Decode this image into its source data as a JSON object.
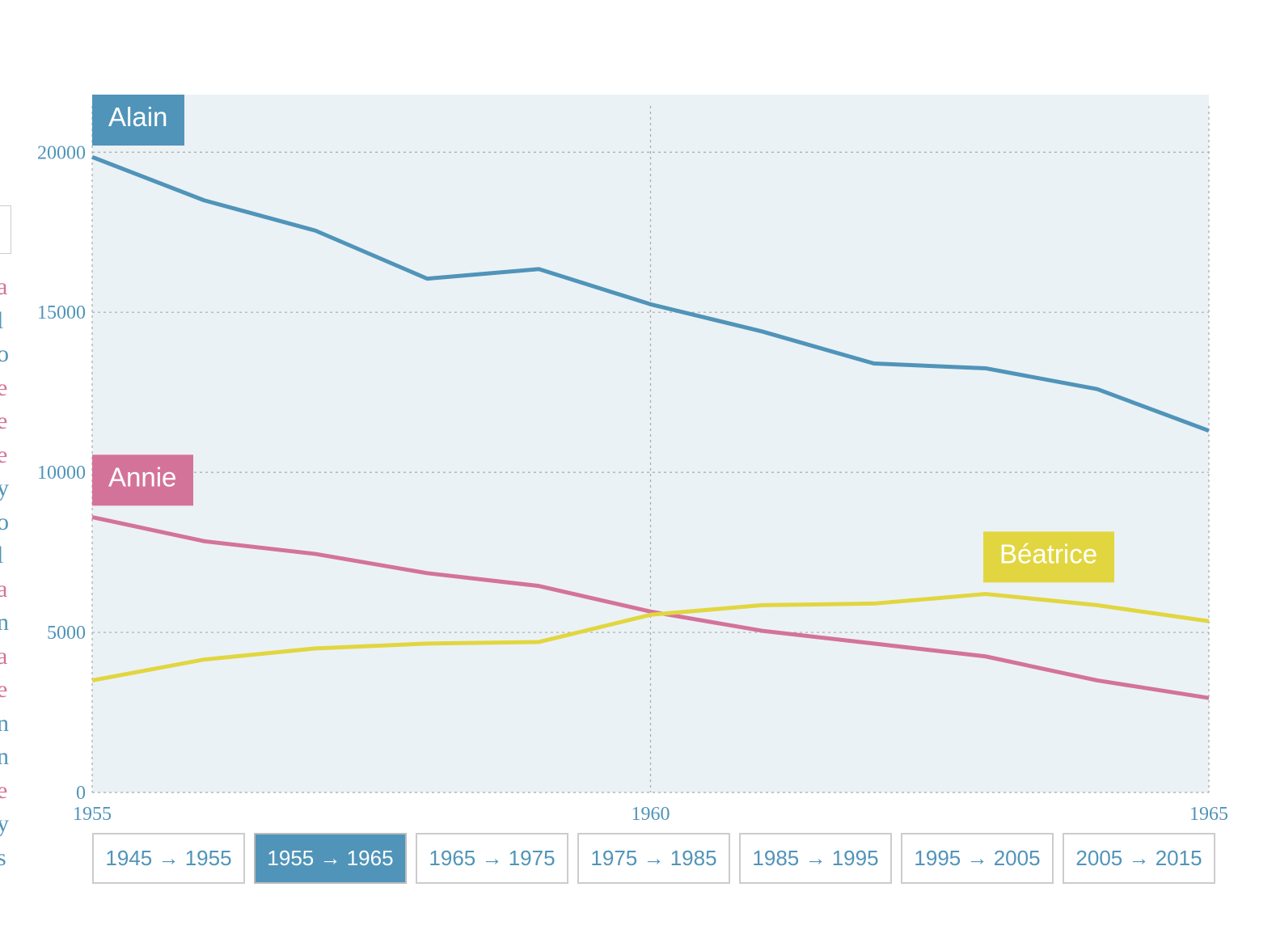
{
  "colors": {
    "plot_background": "#ebf2f6",
    "grid": "#a8a8a8",
    "tick_text": "#5094b9",
    "accent": "#5094b9"
  },
  "chart_data": {
    "type": "line",
    "x": [
      1955,
      1956,
      1957,
      1958,
      1959,
      1960,
      1961,
      1962,
      1963,
      1964,
      1965
    ],
    "xlim": [
      1955,
      1965
    ],
    "ylim": [
      0,
      21800
    ],
    "x_ticks": [
      1955,
      1960,
      1965
    ],
    "y_ticks": [
      0,
      5000,
      10000,
      15000,
      20000
    ],
    "grid": true,
    "series": [
      {
        "name": "Alain",
        "color": "#5094b9",
        "values": [
          19850,
          18500,
          17550,
          16050,
          16350,
          15250,
          14400,
          13400,
          13250,
          12600,
          11300
        ],
        "label_anchor": {
          "x": 1955,
          "y": 21800
        }
      },
      {
        "name": "Annie",
        "color": "#d4739a",
        "values": [
          8600,
          7850,
          7450,
          6850,
          6450,
          5650,
          5050,
          4650,
          4250,
          3500,
          2950
        ],
        "label_anchor": {
          "x": 1955,
          "y": 10550
        }
      },
      {
        "name": "Béatrice",
        "color": "#e2d640",
        "values": [
          3500,
          4150,
          4500,
          4650,
          4700,
          5550,
          5850,
          5900,
          6200,
          5850,
          5350
        ],
        "label_anchor": {
          "x": 1962.98,
          "y": 8150
        }
      }
    ]
  },
  "range_buttons": [
    {
      "label": "1945 → 1955",
      "active": false
    },
    {
      "label": "1955 → 1965",
      "active": true
    },
    {
      "label": "1965 → 1975",
      "active": false
    },
    {
      "label": "1975 → 1985",
      "active": false
    },
    {
      "label": "1985 → 1995",
      "active": false
    },
    {
      "label": "1995 → 2005",
      "active": false
    },
    {
      "label": "2005 → 2015",
      "active": false
    }
  ],
  "side_legend": [
    {
      "char": "a",
      "color": "#d4739a"
    },
    {
      "char": "l",
      "color": "#5094b9"
    },
    {
      "char": "o",
      "color": "#5094b9"
    },
    {
      "char": "e",
      "color": "#d4739a"
    },
    {
      "char": "e",
      "color": "#d4739a"
    },
    {
      "char": "e",
      "color": "#d4739a"
    },
    {
      "char": "y",
      "color": "#5094b9"
    },
    {
      "char": "o",
      "color": "#5094b9"
    },
    {
      "char": "l",
      "color": "#5094b9"
    },
    {
      "char": "a",
      "color": "#d4739a"
    },
    {
      "char": "n",
      "color": "#5094b9"
    },
    {
      "char": "a",
      "color": "#d4739a"
    },
    {
      "char": "e",
      "color": "#d4739a"
    },
    {
      "char": "n",
      "color": "#5094b9"
    },
    {
      "char": "n",
      "color": "#5094b9"
    },
    {
      "char": "e",
      "color": "#d4739a"
    },
    {
      "char": "y",
      "color": "#5094b9"
    },
    {
      "char": "s",
      "color": "#5094b9"
    }
  ]
}
